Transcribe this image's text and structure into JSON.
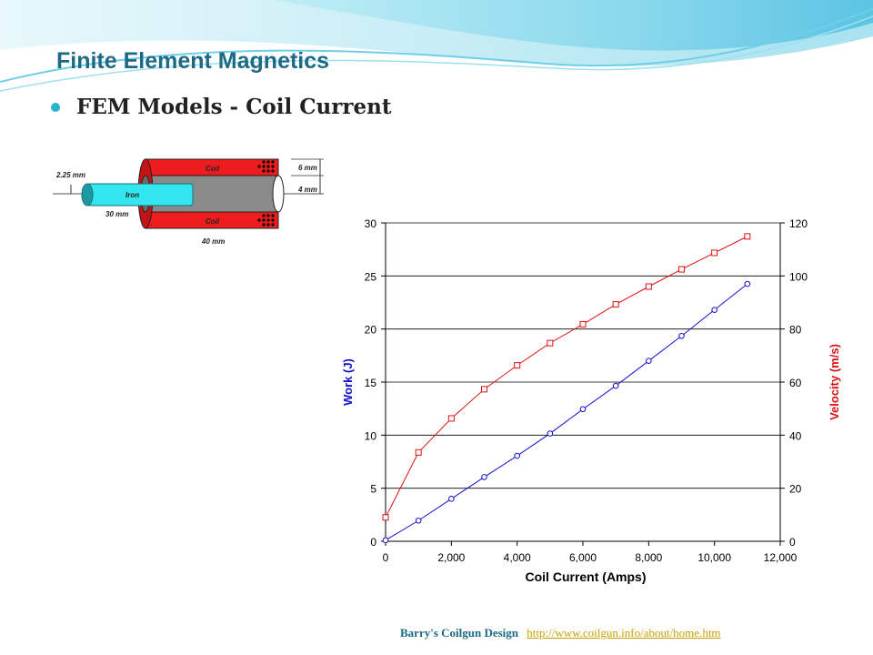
{
  "slide": {
    "title": "Finite Element Magnetics",
    "bullet": "FEM Models - Coil Current"
  },
  "diagram": {
    "labels": {
      "coil_top": "Coil",
      "coil_bottom": "Coil",
      "iron": "Iron",
      "dim_225": "2.25 mm",
      "dim_30": "30 mm",
      "dim_40": "40 mm",
      "dim_6": "6 mm",
      "dim_4": "4 mm"
    },
    "colors": {
      "coil": "#ee1c1c",
      "iron": "#33e5ef",
      "bore": "#8a8a8a"
    }
  },
  "chart_data": {
    "type": "line",
    "x": [
      0,
      1000,
      2000,
      3000,
      4000,
      5000,
      6000,
      7000,
      8000,
      9000,
      10000,
      11000
    ],
    "xlabel": "Coil Current (Amps)",
    "xlim": [
      0,
      12000
    ],
    "xticks": [
      "0",
      "2,000",
      "4,000",
      "6,000",
      "8,000",
      "10,000",
      "12,000"
    ],
    "ylabel_left": "Work (J)",
    "ylim_left": [
      0,
      30
    ],
    "yticks_left": [
      "0",
      "5",
      "10",
      "15",
      "20",
      "25",
      "30"
    ],
    "ylabel_right": "Velocity (m/s)",
    "ylim_right": [
      0,
      120
    ],
    "yticks_right": [
      "0",
      "20",
      "40",
      "60",
      "80",
      "100",
      "120"
    ],
    "grid": true,
    "series": [
      {
        "axis": "left",
        "marker": "circle",
        "color": "#1010cc",
        "values": [
          0.1,
          1.95,
          4.0,
          6.05,
          8.05,
          10.15,
          12.45,
          14.65,
          17.0,
          19.35,
          21.8,
          24.25
        ]
      },
      {
        "axis": "right",
        "marker": "square",
        "color": "#dd1111",
        "values": [
          9,
          33.5,
          46.3,
          57.3,
          66.3,
          74.7,
          81.8,
          89.3,
          96.0,
          102.5,
          108.7,
          114.9
        ]
      }
    ]
  },
  "footer": {
    "credit": "Barry's Coilgun Design",
    "url": "http://www.coilgun.info/about/home.htm"
  }
}
